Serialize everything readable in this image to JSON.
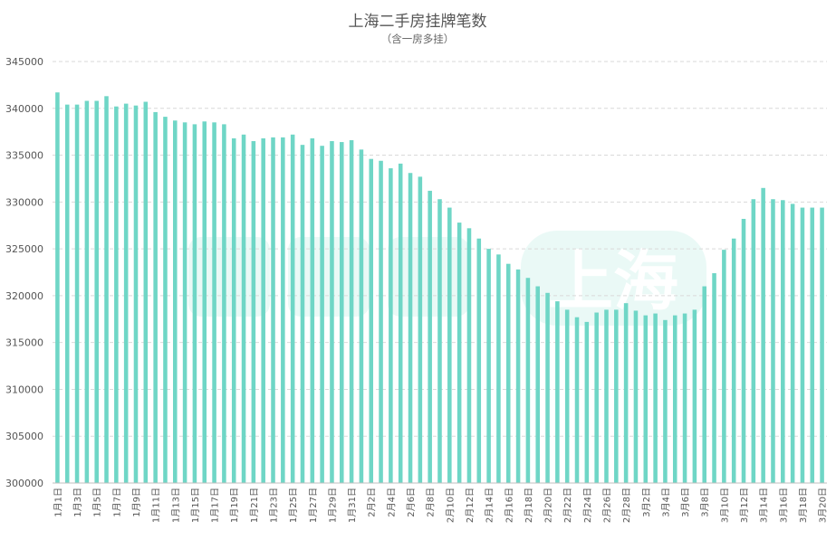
{
  "chart_data": {
    "type": "bar",
    "title": "上海二手房挂牌笔数",
    "subtitle": "（含一房多挂）",
    "ylim": [
      300000,
      345000
    ],
    "yticks": [
      300000,
      305000,
      310000,
      315000,
      320000,
      325000,
      330000,
      335000,
      340000,
      345000
    ],
    "grid": true,
    "colors": {
      "bar": "#6fd6c6",
      "grid": "#d9d9d9"
    },
    "categories": [
      "1月1日",
      "1月2日",
      "1月3日",
      "1月4日",
      "1月5日",
      "1月6日",
      "1月7日",
      "1月8日",
      "1月9日",
      "1月10日",
      "1月11日",
      "1月12日",
      "1月13日",
      "1月14日",
      "1月15日",
      "1月16日",
      "1月17日",
      "1月18日",
      "1月19日",
      "1月20日",
      "1月21日",
      "1月22日",
      "1月23日",
      "1月24日",
      "1月25日",
      "1月26日",
      "1月27日",
      "1月28日",
      "1月29日",
      "1月30日",
      "1月31日",
      "2月1日",
      "2月2日",
      "2月3日",
      "2月4日",
      "2月5日",
      "2月6日",
      "2月7日",
      "2月8日",
      "2月9日",
      "2月10日",
      "2月11日",
      "2月12日",
      "2月13日",
      "2月14日",
      "2月15日",
      "2月16日",
      "2月17日",
      "2月18日",
      "2月19日",
      "2月20日",
      "2月21日",
      "2月22日",
      "2月23日",
      "2月24日",
      "2月25日",
      "2月26日",
      "2月27日",
      "2月28日",
      "3月1日",
      "3月2日",
      "3月3日",
      "3月4日",
      "3月5日",
      "3月6日",
      "3月7日",
      "3月8日",
      "3月9日",
      "3月10日",
      "3月11日",
      "3月12日",
      "3月13日",
      "3月14日",
      "3月15日",
      "3月16日",
      "3月17日",
      "3月18日",
      "3月19日",
      "3月20日"
    ],
    "values": [
      341700,
      340400,
      340400,
      340800,
      340800,
      341300,
      340200,
      340500,
      340300,
      340700,
      339600,
      339100,
      338700,
      338500,
      338300,
      338600,
      338500,
      338300,
      336800,
      337200,
      336500,
      336800,
      336900,
      336900,
      337200,
      336100,
      336800,
      336000,
      336500,
      336400,
      336600,
      335600,
      334600,
      334400,
      333600,
      334100,
      333100,
      332700,
      331200,
      330300,
      329400,
      327800,
      327200,
      326100,
      325000,
      324400,
      323400,
      322800,
      321900,
      321000,
      320300,
      319400,
      318500,
      317700,
      317200,
      318200,
      318500,
      318500,
      319200,
      318400,
      317900,
      318100,
      317400,
      317900,
      318100,
      318500,
      321000,
      322400,
      324900,
      326100,
      328200,
      330300,
      331500,
      330300,
      330200,
      329800,
      329400,
      329400,
      329400
    ],
    "xtick_labels": [
      "1月1日",
      "1月3日",
      "1月5日",
      "1月7日",
      "1月9日",
      "1月11日",
      "1月13日",
      "1月15日",
      "1月17日",
      "1月19日",
      "1月21日",
      "1月23日",
      "1月25日",
      "1月27日",
      "1月29日",
      "1月31日",
      "2月2日",
      "2月4日",
      "2月6日",
      "2月8日",
      "2月10日",
      "2月12日",
      "2月14日",
      "2月16日",
      "2月18日",
      "2月20日",
      "2月22日",
      "2月24日",
      "2月26日",
      "2月28日",
      "3月2日",
      "3月4日",
      "3月6日",
      "3月8日",
      "3月10日",
      "3月12日",
      "3月14日",
      "3月16日",
      "3月18日",
      "3月20日"
    ],
    "watermark": "上海"
  }
}
